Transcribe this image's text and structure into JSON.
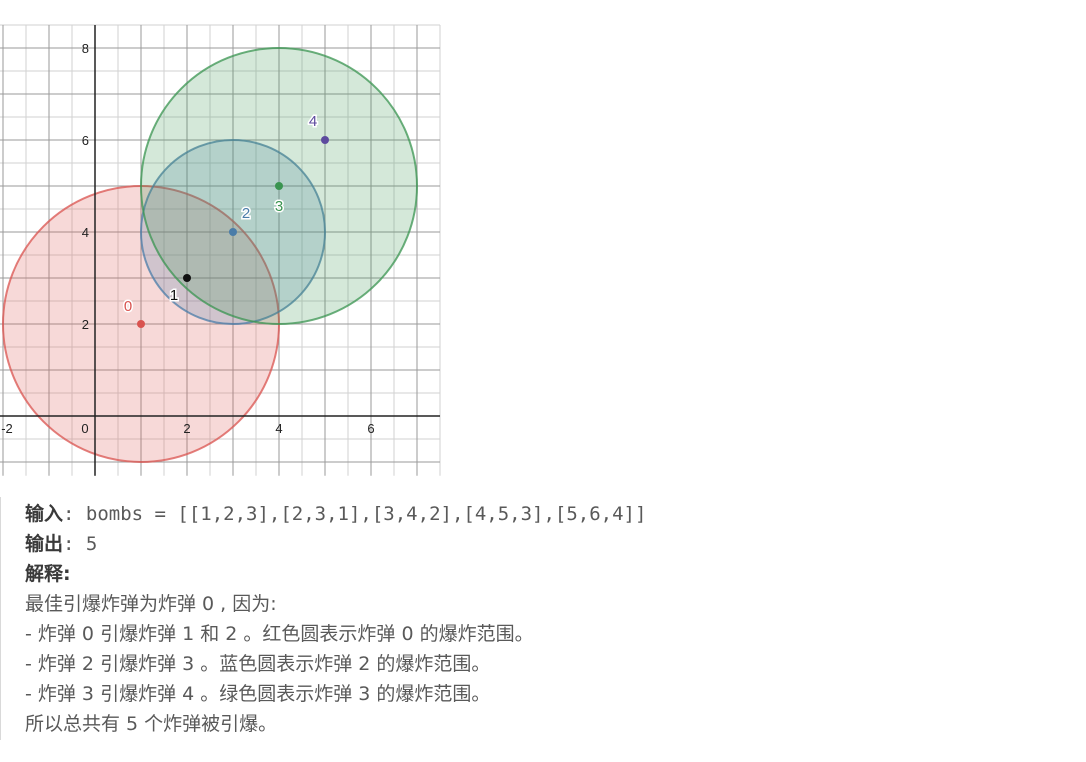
{
  "chart_data": {
    "type": "scatter",
    "xlim": [
      -2,
      7.5
    ],
    "ylim": [
      -1.3,
      8.5
    ],
    "grid": "on",
    "x_ticks": [
      {
        "value": -2,
        "label": "-2"
      },
      {
        "value": 0,
        "label": "0"
      },
      {
        "value": 2,
        "label": "2"
      },
      {
        "value": 4,
        "label": "4"
      },
      {
        "value": 6,
        "label": "6"
      }
    ],
    "y_ticks": [
      {
        "value": 2,
        "label": "2"
      },
      {
        "value": 4,
        "label": "4"
      },
      {
        "value": 6,
        "label": "6"
      },
      {
        "value": 8,
        "label": "8"
      }
    ],
    "bombs": [
      {
        "label": "0",
        "x": 1,
        "y": 2,
        "r": 3,
        "color": "#d9534f",
        "circle": true
      },
      {
        "label": "1",
        "x": 2,
        "y": 3,
        "r": 1,
        "color": "#111111",
        "circle": false
      },
      {
        "label": "2",
        "x": 3,
        "y": 4,
        "r": 2,
        "color": "#4a7ca8",
        "circle": true
      },
      {
        "label": "3",
        "x": 4,
        "y": 5,
        "r": 3,
        "color": "#3a9450",
        "circle": true
      },
      {
        "label": "4",
        "x": 5,
        "y": 6,
        "r": 4,
        "color": "#5d4a9e",
        "circle": false
      }
    ]
  },
  "example": {
    "input_label": "输入",
    "input_value": ": bombs = [[1,2,3],[2,3,1],[3,4,2],[4,5,3],[5,6,4]]",
    "output_label": "输出",
    "output_value": ": 5",
    "explain_label": "解释:",
    "lines": [
      "最佳引爆炸弹为炸弹 0 , 因为:",
      "- 炸弹 0 引爆炸弹 1 和 2 。红色圆表示炸弹 0 的爆炸范围。",
      "- 炸弹 2 引爆炸弹 3 。蓝色圆表示炸弹 2 的爆炸范围。",
      "- 炸弹 3 引爆炸弹 4 。绿色圆表示炸弹 3 的爆炸范围。",
      "所以总共有 5 个炸弹被引爆。"
    ]
  }
}
